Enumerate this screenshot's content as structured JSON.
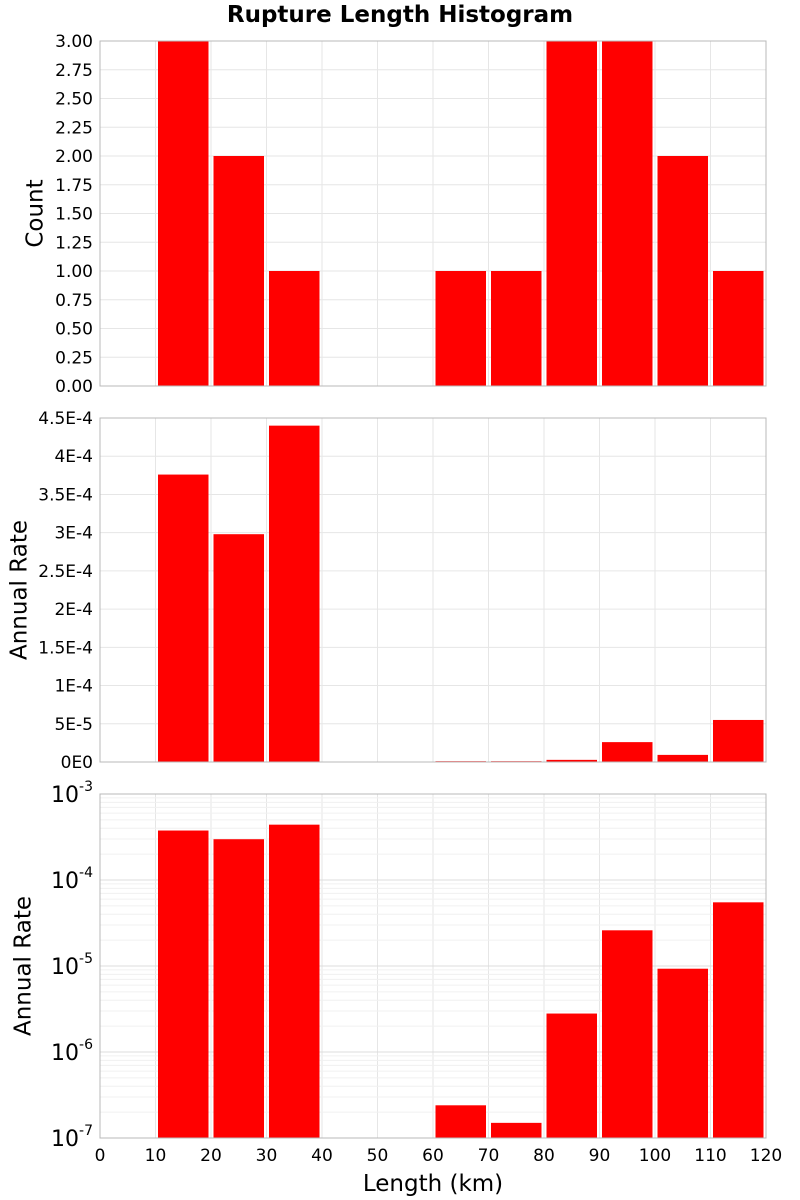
{
  "chart_data": {
    "title": "Rupture Length Histogram",
    "xlabel": "Length (km)",
    "xlim": [
      0,
      120
    ],
    "x_ticks": [
      "0",
      "10",
      "20",
      "30",
      "40",
      "50",
      "60",
      "70",
      "80",
      "90",
      "100",
      "110",
      "120"
    ],
    "bins": [
      10,
      20,
      30,
      60,
      70,
      80,
      90,
      100,
      110
    ],
    "bin_width": 10,
    "bar_color": "#ff0000",
    "grid": true,
    "subplots": [
      {
        "type": "bar",
        "ylabel": "Count",
        "yscale": "linear",
        "ylim": [
          0,
          3.0
        ],
        "y_ticks": [
          "0.00",
          "0.25",
          "0.50",
          "0.75",
          "1.00",
          "1.25",
          "1.50",
          "1.75",
          "2.00",
          "2.25",
          "2.50",
          "2.75",
          "3.00"
        ],
        "values": [
          3,
          2,
          1,
          1,
          1,
          3,
          3,
          2,
          1
        ]
      },
      {
        "type": "bar",
        "ylabel": "Annual Rate",
        "yscale": "linear",
        "ylim": [
          0,
          0.00045
        ],
        "y_ticks": [
          "0E0",
          "5E-5",
          "1E-4",
          "1.5E-4",
          "2E-4",
          "2.5E-4",
          "3E-4",
          "3.5E-4",
          "4E-4",
          "4.5E-4"
        ],
        "values": [
          0.000376,
          0.000298,
          0.00044,
          2.4e-07,
          1.5e-07,
          2.8e-06,
          2.6e-05,
          9.3e-06,
          5.5e-05
        ]
      },
      {
        "type": "bar",
        "ylabel": "Annual Rate",
        "yscale": "log",
        "ylim": [
          1e-07,
          0.001
        ],
        "y_ticks": [
          {
            "base": "10",
            "exp": "-7"
          },
          {
            "base": "10",
            "exp": "-6"
          },
          {
            "base": "10",
            "exp": "-5"
          },
          {
            "base": "10",
            "exp": "-4"
          },
          {
            "base": "10",
            "exp": "-3"
          }
        ],
        "values": [
          0.000376,
          0.000298,
          0.00044,
          2.4e-07,
          1.5e-07,
          2.8e-06,
          2.6e-05,
          9.3e-06,
          5.5e-05
        ]
      }
    ]
  }
}
